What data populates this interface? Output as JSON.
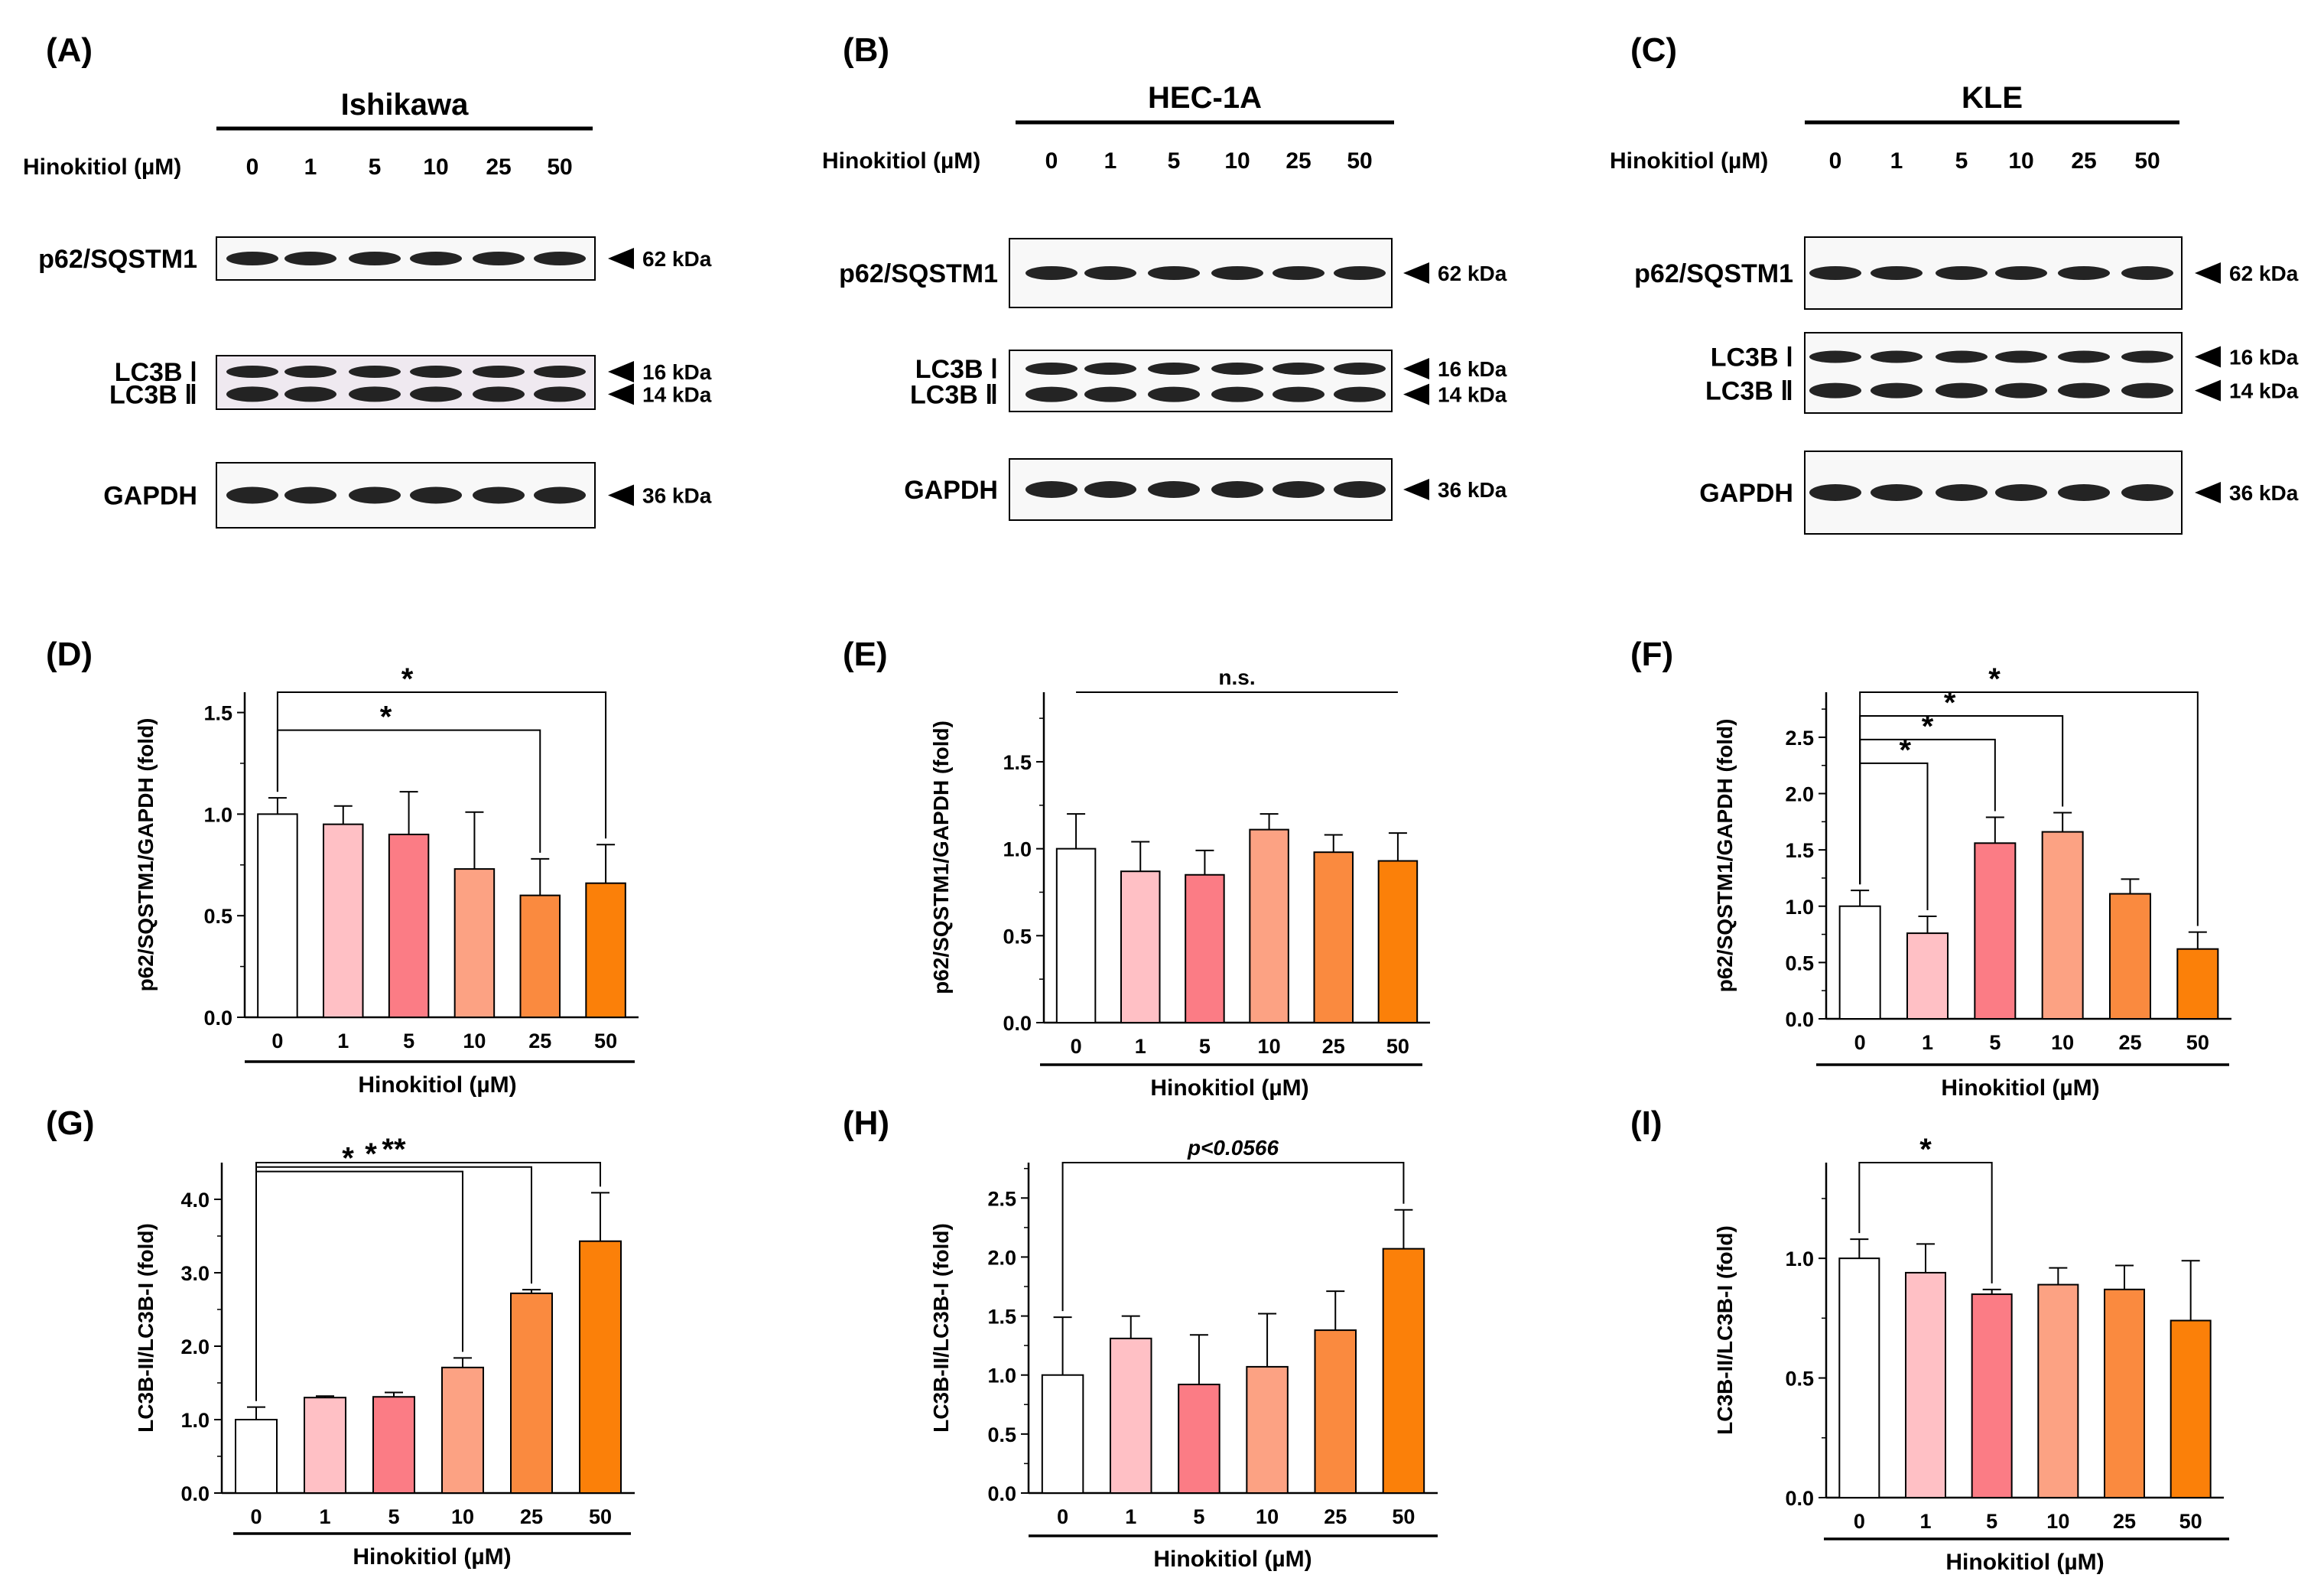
{
  "colors": {
    "bars": [
      "#ffffff",
      "#ffc0c5",
      "#fb7c85",
      "#fca283",
      "#fa8a3f",
      "#fb8009"
    ],
    "band": "#111111",
    "frame": "#000000"
  },
  "blots": [
    {
      "panel": "(A)",
      "cell_line": "Ishikawa",
      "dose_label": "Hinokitiol (µM)",
      "doses": [
        "0",
        "1",
        "5",
        "10",
        "25",
        "50"
      ],
      "proteins": [
        "p62/SQSTM1",
        "LC3B Ⅰ",
        "LC3B Ⅱ",
        "GAPDH"
      ],
      "markers": [
        "62 kDa",
        "16 kDa",
        "14 kDa",
        "36 kDa"
      ]
    },
    {
      "panel": "(B)",
      "cell_line": "HEC-1A",
      "dose_label": "Hinokitiol (µM)",
      "doses": [
        "0",
        "1",
        "5",
        "10",
        "25",
        "50"
      ],
      "proteins": [
        "p62/SQSTM1",
        "LC3B Ⅰ",
        "LC3B Ⅱ",
        "GAPDH"
      ],
      "markers": [
        "62 kDa",
        "16 kDa",
        "14 kDa",
        "36 kDa"
      ]
    },
    {
      "panel": "(C)",
      "cell_line": "KLE",
      "dose_label": "Hinokitiol (µM)",
      "doses": [
        "0",
        "1",
        "5",
        "10",
        "25",
        "50"
      ],
      "proteins": [
        "p62/SQSTM1",
        "LC3B Ⅰ",
        "LC3B Ⅱ",
        "GAPDH"
      ],
      "markers": [
        "62 kDa",
        "16 kDa",
        "14 kDa",
        "36 kDa"
      ]
    }
  ],
  "chart_data": [
    {
      "panel": "(D)",
      "type": "bar",
      "ylabel": "p62/SQSTM1/GAPDH (fold)",
      "xlabel": "Hinokitiol (µM)",
      "categories": [
        "0",
        "1",
        "5",
        "10",
        "25",
        "50"
      ],
      "values": [
        1.0,
        0.95,
        0.9,
        0.73,
        0.6,
        0.66
      ],
      "errors": [
        0.08,
        0.09,
        0.21,
        0.28,
        0.18,
        0.19
      ],
      "ylim": [
        0,
        1.6
      ],
      "yticks": [
        "0.0",
        "0.5",
        "1.0",
        "1.5"
      ],
      "significance": [
        {
          "from": 0,
          "to": 4,
          "label": "*"
        },
        {
          "from": 0,
          "to": 5,
          "label": "*"
        }
      ]
    },
    {
      "panel": "(E)",
      "type": "bar",
      "ylabel": "p62/SQSTM1/GAPDH (fold)",
      "xlabel": "Hinokitiol (µM)",
      "categories": [
        "0",
        "1",
        "5",
        "10",
        "25",
        "50"
      ],
      "values": [
        1.0,
        0.87,
        0.85,
        1.11,
        0.98,
        0.93
      ],
      "errors": [
        0.2,
        0.17,
        0.14,
        0.09,
        0.1,
        0.16
      ],
      "ylim": [
        0,
        1.9
      ],
      "yticks": [
        "0.0",
        "0.5",
        "1.0",
        "1.5"
      ],
      "significance": [
        {
          "from": 0,
          "to": 5,
          "label": "n.s.",
          "bracket": false
        }
      ]
    },
    {
      "panel": "(F)",
      "type": "bar",
      "ylabel": "p62/SQSTM1/GAPDH (fold)",
      "xlabel": "Hinokitiol (µM)",
      "categories": [
        "0",
        "1",
        "5",
        "10",
        "25",
        "50"
      ],
      "values": [
        1.0,
        0.76,
        1.56,
        1.66,
        1.11,
        0.62
      ],
      "errors": [
        0.14,
        0.15,
        0.23,
        0.17,
        0.13,
        0.15
      ],
      "ylim": [
        0,
        2.9
      ],
      "yticks": [
        "0.0",
        "0.5",
        "1.0",
        "1.5",
        "2.0",
        "2.5"
      ],
      "significance": [
        {
          "from": 0,
          "to": 1,
          "label": "*"
        },
        {
          "from": 0,
          "to": 2,
          "label": "*"
        },
        {
          "from": 0,
          "to": 3,
          "label": "*"
        },
        {
          "from": 0,
          "to": 5,
          "label": "*"
        }
      ]
    },
    {
      "panel": "(G)",
      "type": "bar",
      "ylabel": "LC3B-II/LC3B-I (fold)",
      "xlabel": "Hinokitiol (µM)",
      "categories": [
        "0",
        "1",
        "5",
        "10",
        "25",
        "50"
      ],
      "values": [
        1.0,
        1.3,
        1.31,
        1.71,
        2.72,
        3.43
      ],
      "errors": [
        0.17,
        0.02,
        0.06,
        0.13,
        0.05,
        0.66
      ],
      "ylim": [
        0,
        4.5
      ],
      "yticks": [
        "0.0",
        "1.0",
        "2.0",
        "3.0",
        "4.0"
      ],
      "significance": [
        {
          "from": 0,
          "to": 3,
          "label": "*"
        },
        {
          "from": 0,
          "to": 4,
          "label": "*"
        },
        {
          "from": 0,
          "to": 5,
          "label": "**"
        }
      ]
    },
    {
      "panel": "(H)",
      "type": "bar",
      "ylabel": "LC3B-II/LC3B-I (fold)",
      "xlabel": "Hinokitiol (µM)",
      "categories": [
        "0",
        "1",
        "5",
        "10",
        "25",
        "50"
      ],
      "values": [
        1.0,
        1.31,
        0.92,
        1.07,
        1.38,
        2.07
      ],
      "errors": [
        0.49,
        0.19,
        0.42,
        0.45,
        0.33,
        0.33
      ],
      "ylim": [
        0,
        2.8
      ],
      "yticks": [
        "0.0",
        "0.5",
        "1.0",
        "1.5",
        "2.0",
        "2.5"
      ],
      "significance": [
        {
          "from": 0,
          "to": 5,
          "label": "p<0.0566"
        }
      ]
    },
    {
      "panel": "(I)",
      "type": "bar",
      "ylabel": "LC3B-II/LC3B-I (fold)",
      "xlabel": "Hinokitiol (µM)",
      "categories": [
        "0",
        "1",
        "5",
        "10",
        "25",
        "50"
      ],
      "values": [
        1.0,
        0.94,
        0.85,
        0.89,
        0.87,
        0.74
      ],
      "errors": [
        0.08,
        0.12,
        0.02,
        0.07,
        0.1,
        0.25
      ],
      "ylim": [
        0,
        1.4
      ],
      "yticks": [
        "0.0",
        "0.5",
        "1.0"
      ],
      "significance": [
        {
          "from": 0,
          "to": 2,
          "label": "*"
        }
      ]
    }
  ]
}
